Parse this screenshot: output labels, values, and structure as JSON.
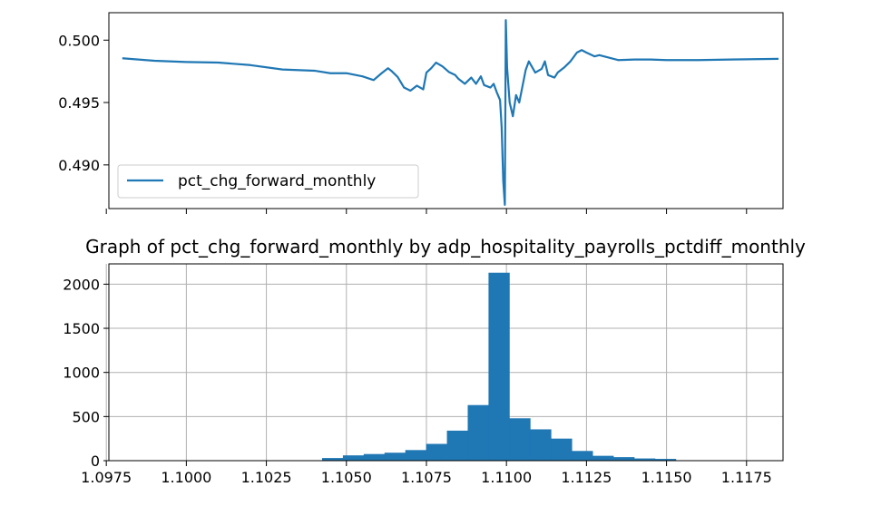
{
  "chart_data": [
    {
      "type": "line",
      "title": "",
      "xlabel": "",
      "ylabel": "",
      "ylim": [
        0.4865,
        0.5022
      ],
      "xlim": [
        1.09758,
        1.11864
      ],
      "yticks": [
        0.49,
        0.495,
        0.5
      ],
      "ytick_labels": [
        "0.490",
        "0.495",
        "0.500"
      ],
      "x_tick_labels_shown": false,
      "grid": false,
      "legend": {
        "placement": "lower left",
        "entries": [
          "pct_chg_forward_monthly"
        ]
      },
      "series": [
        {
          "name": "pct_chg_forward_monthly",
          "color": "#1f77b4",
          "points": [
            [
              1.098,
              0.49855
            ],
            [
              1.099,
              0.49835
            ],
            [
              1.1,
              0.49825
            ],
            [
              1.101,
              0.4982
            ],
            [
              1.102,
              0.498
            ],
            [
              1.103,
              0.49765
            ],
            [
              1.104,
              0.49755
            ],
            [
              1.1045,
              0.49735
            ],
            [
              1.105,
              0.49735
            ],
            [
              1.1055,
              0.4971
            ],
            [
              1.10585,
              0.4968
            ],
            [
              1.1061,
              0.49735
            ],
            [
              1.1063,
              0.49775
            ],
            [
              1.1064,
              0.49755
            ],
            [
              1.1066,
              0.49705
            ],
            [
              1.1068,
              0.4962
            ],
            [
              1.107,
              0.49595
            ],
            [
              1.1072,
              0.49635
            ],
            [
              1.1074,
              0.49605
            ],
            [
              1.1075,
              0.4974
            ],
            [
              1.10765,
              0.49775
            ],
            [
              1.1078,
              0.4982
            ],
            [
              1.108,
              0.4979
            ],
            [
              1.1082,
              0.49745
            ],
            [
              1.1084,
              0.4972
            ],
            [
              1.1085,
              0.4969
            ],
            [
              1.1087,
              0.4965
            ],
            [
              1.1089,
              0.497
            ],
            [
              1.10905,
              0.4965
            ],
            [
              1.1092,
              0.4971
            ],
            [
              1.1093,
              0.4964
            ],
            [
              1.1095,
              0.4962
            ],
            [
              1.1096,
              0.4965
            ],
            [
              1.1097,
              0.4958
            ],
            [
              1.1098,
              0.4952
            ],
            [
              1.10985,
              0.493
            ],
            [
              1.1099,
              0.4887
            ],
            [
              1.10995,
              0.4868
            ],
            [
              1.10998,
              0.5016
            ],
            [
              1.11002,
              0.4978
            ],
            [
              1.1101,
              0.495
            ],
            [
              1.1102,
              0.4939
            ],
            [
              1.1103,
              0.4956
            ],
            [
              1.1104,
              0.495
            ],
            [
              1.1106,
              0.4976
            ],
            [
              1.1107,
              0.4983
            ],
            [
              1.1109,
              0.4974
            ],
            [
              1.1111,
              0.4977
            ],
            [
              1.1112,
              0.4983
            ],
            [
              1.1113,
              0.4972
            ],
            [
              1.1115,
              0.497
            ],
            [
              1.1116,
              0.4974
            ],
            [
              1.1118,
              0.4978
            ],
            [
              1.112,
              0.4983
            ],
            [
              1.1122,
              0.499
            ],
            [
              1.11235,
              0.4992
            ],
            [
              1.1125,
              0.499
            ],
            [
              1.11275,
              0.4987
            ],
            [
              1.1129,
              0.4988
            ],
            [
              1.1132,
              0.4986
            ],
            [
              1.1135,
              0.4984
            ],
            [
              1.114,
              0.49845
            ],
            [
              1.1145,
              0.49845
            ],
            [
              1.115,
              0.4984
            ],
            [
              1.116,
              0.4984
            ],
            [
              1.117,
              0.49845
            ],
            [
              1.1185,
              0.4985
            ]
          ]
        }
      ]
    },
    {
      "type": "bar",
      "title": "Graph of pct_chg_forward_monthly by adp_hospitality_payrolls_pctdiff_monthly",
      "xlabel": "",
      "ylabel": "",
      "xlim": [
        1.09758,
        1.11864
      ],
      "ylim": [
        0,
        2230
      ],
      "xticks": [
        1.0975,
        1.1,
        1.1025,
        1.105,
        1.1075,
        1.11,
        1.1125,
        1.115,
        1.1175
      ],
      "xtick_labels": [
        "1.0975",
        "1.1000",
        "1.1025",
        "1.1050",
        "1.1075",
        "1.1100",
        "1.1125",
        "1.1150",
        "1.1175"
      ],
      "yticks": [
        0,
        500,
        1000,
        1500,
        2000
      ],
      "ytick_labels": [
        "0",
        "500",
        "1000",
        "1500",
        "2000"
      ],
      "grid": true,
      "bar_color": "#1f77b4",
      "bin_edges": [
        1.10424,
        1.10489,
        1.10554,
        1.10619,
        1.10684,
        1.10749,
        1.10814,
        1.10879,
        1.10944,
        1.11009,
        1.11074,
        1.11139,
        1.11204,
        1.11269,
        1.11334,
        1.11399,
        1.11464,
        1.11529,
        1.11594
      ],
      "values": [
        30,
        60,
        75,
        90,
        120,
        190,
        340,
        630,
        2130,
        480,
        355,
        250,
        110,
        55,
        40,
        25,
        20,
        5
      ]
    }
  ]
}
